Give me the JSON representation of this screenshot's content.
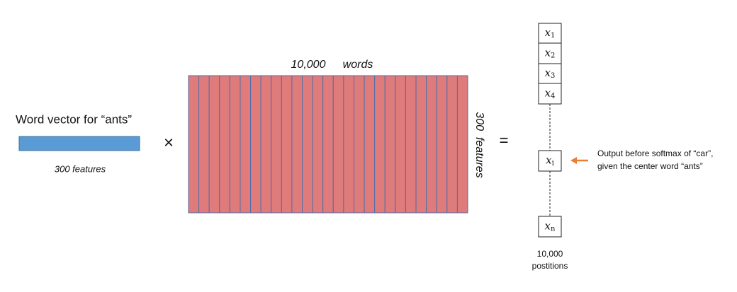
{
  "vector": {
    "label": "Word vector for “ants”",
    "size": "300 features"
  },
  "times": "×",
  "matrix": {
    "top": [
      "10,000",
      "words"
    ],
    "side": "300  features"
  },
  "equals": "=",
  "output": {
    "cells": [
      {
        "base": "x",
        "sub": "1"
      },
      {
        "base": "x",
        "sub": "2"
      },
      {
        "base": "x",
        "sub": "3"
      },
      {
        "base": "x",
        "sub": "4"
      },
      {
        "base": "x",
        "sub": "i"
      },
      {
        "base": "x",
        "sub": "n"
      }
    ],
    "note": [
      "Output before softmax of “car”,",
      "given the center word “ants”"
    ],
    "count": [
      "10,000",
      "postitions"
    ]
  }
}
